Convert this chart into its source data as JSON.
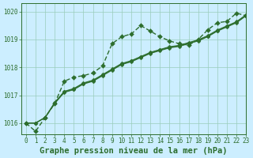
{
  "title": "Graphe pression niveau de la mer (hPa)",
  "background_color": "#cceeff",
  "grid_color": "#99ccbb",
  "line_color": "#2d6e2d",
  "xlim": [
    -0.5,
    23
  ],
  "ylim": [
    1015.6,
    1020.3
  ],
  "yticks": [
    1016,
    1017,
    1018,
    1019,
    1020
  ],
  "xticks": [
    0,
    1,
    2,
    3,
    4,
    5,
    6,
    7,
    8,
    9,
    10,
    11,
    12,
    13,
    14,
    15,
    16,
    17,
    18,
    19,
    20,
    21,
    22,
    23
  ],
  "series_jagged": [
    1016.0,
    1015.7,
    1016.2,
    1016.7,
    1017.5,
    1017.65,
    1017.7,
    1017.8,
    1018.05,
    1018.85,
    1019.1,
    1019.2,
    1019.5,
    1019.3,
    1019.1,
    1018.95,
    1018.85,
    1018.8,
    1019.0,
    1019.35,
    1019.6,
    1019.65,
    1019.95,
    1019.85
  ],
  "series_straight": [
    [
      1016.0,
      1016.0,
      1016.2,
      1016.7,
      1017.1,
      1017.2,
      1017.4,
      1017.5,
      1017.7,
      1017.9,
      1018.1,
      1018.2,
      1018.35,
      1018.5,
      1018.6,
      1018.7,
      1018.75,
      1018.85,
      1018.95,
      1019.1,
      1019.3,
      1019.45,
      1019.6,
      1019.85
    ],
    [
      1016.0,
      1016.0,
      1016.2,
      1016.72,
      1017.12,
      1017.22,
      1017.42,
      1017.52,
      1017.72,
      1017.92,
      1018.12,
      1018.22,
      1018.37,
      1018.52,
      1018.62,
      1018.72,
      1018.77,
      1018.87,
      1018.97,
      1019.12,
      1019.32,
      1019.47,
      1019.62,
      1019.87
    ],
    [
      1016.0,
      1016.0,
      1016.2,
      1016.74,
      1017.14,
      1017.24,
      1017.44,
      1017.54,
      1017.74,
      1017.94,
      1018.14,
      1018.24,
      1018.39,
      1018.54,
      1018.64,
      1018.74,
      1018.79,
      1018.89,
      1018.99,
      1019.14,
      1019.34,
      1019.49,
      1019.64,
      1019.89
    ]
  ],
  "marker": "D",
  "marker_size": 2.5,
  "line_width": 0.8,
  "title_fontsize": 7.5,
  "tick_fontsize": 5.5
}
